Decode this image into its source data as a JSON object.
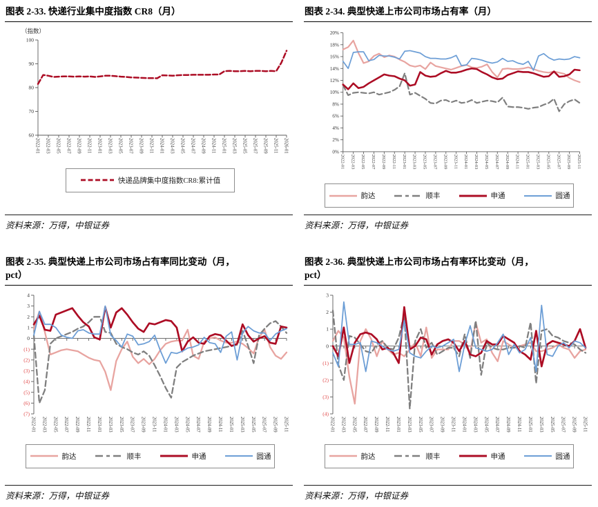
{
  "colors": {
    "cr8": "#AC0C24",
    "yunda": "#E8A4A0",
    "shunfeng": "#7F7F7F",
    "shentong": "#AC0C24",
    "yuantong": "#6C9ED6",
    "negative_tick": "#E04848",
    "axis": "#595959"
  },
  "panels": [
    {
      "title_lines": [
        "图表 2-33. 快递行业集中度指数 CR8（月）"
      ],
      "unit_label": "（指数）",
      "source": "资料来源：万得，中银证券"
    },
    {
      "title_lines": [
        "图表 2-34. 典型快递上市公司市场占有率（月）"
      ],
      "source": "资料来源：万得，中银证券"
    },
    {
      "title_lines": [
        "图表 2-35. 典型快递上市公司市场占有率同比变动（月，",
        "pct）"
      ],
      "source": "资料来源：万得，中银证券"
    },
    {
      "title_lines": [
        "图表 2-36. 典型快递上市公司市场占有率环比变动（月，",
        "pct）"
      ],
      "source": "资料来源：万得，中银证券"
    }
  ],
  "chart_data": [
    {
      "type": "line",
      "title": "快递行业集中度指数 CR8（月）",
      "ylabel": "（指数）",
      "ylim": [
        60,
        100
      ],
      "yticks": [
        {
          "v": 100,
          "label": "100"
        },
        {
          "v": 90,
          "label": "90"
        },
        {
          "v": 80,
          "label": "80"
        },
        {
          "v": 70,
          "label": "70"
        },
        {
          "v": 60,
          "label": "60"
        }
      ],
      "x_tick_labels": [
        "2022-01",
        "2022-03",
        "2022-05",
        "2022-07",
        "2022-09",
        "2022-11",
        "2023-01",
        "2023-03",
        "2023-05",
        "2023-07",
        "2023-09",
        "2023-11",
        "2024-01",
        "2024-03",
        "2024-05",
        "2024-07",
        "2024-09",
        "2024-11",
        "2025-01",
        "2025-03",
        "2025-05",
        "2025-07",
        "2025-09",
        "2025-11",
        "2026-01"
      ],
      "series": [
        {
          "name": "快递品牌集中度指数CR8:累计值",
          "key": "cr8",
          "values": [
            81.5,
            85.3,
            85.0,
            84.5,
            84.6,
            84.7,
            84.7,
            84.6,
            84.7,
            84.6,
            84.7,
            84.5,
            84.7,
            85.0,
            85.0,
            84.8,
            84.6,
            84.5,
            84.3,
            84.2,
            84.1,
            84.0,
            84.0,
            83.9,
            85.2,
            85.1,
            85.0,
            85.2,
            85.3,
            85.3,
            85.4,
            85.4,
            85.4,
            85.4,
            85.5,
            85.5,
            86.9,
            87.0,
            86.9,
            86.9,
            87.0,
            86.9,
            87.0,
            87.0,
            86.9,
            87.0,
            86.9,
            90.5,
            95.5
          ]
        }
      ]
    },
    {
      "type": "line",
      "title": "典型快递上市公司市场占有率（月）",
      "ylim": [
        0,
        20
      ],
      "ytick_suffix": "%",
      "yticks": [
        {
          "v": 20,
          "label": "20%"
        },
        {
          "v": 18,
          "label": "18%"
        },
        {
          "v": 16,
          "label": "16%"
        },
        {
          "v": 14,
          "label": "14%"
        },
        {
          "v": 12,
          "label": "12%"
        },
        {
          "v": 10,
          "label": "10%"
        },
        {
          "v": 8,
          "label": "8%"
        },
        {
          "v": 6,
          "label": "6%"
        },
        {
          "v": 4,
          "label": "4%"
        },
        {
          "v": 2,
          "label": "2%"
        },
        {
          "v": 0,
          "label": "0%"
        }
      ],
      "x_tick_labels": [
        "2022-01",
        "2022-03",
        "2022-05",
        "2022-07",
        "2022-09",
        "2022-11",
        "2023-01",
        "2023-03",
        "2023-05",
        "2023-07",
        "2023-09",
        "2023-11",
        "2024-01",
        "2024-03",
        "2024-05",
        "2024-07",
        "2024-09",
        "2024-11",
        "2025-01",
        "2025-03",
        "2025-05",
        "2025-07",
        "2025-09",
        "2025-11"
      ],
      "series": [
        {
          "name": "韵达",
          "key": "yunda",
          "values": [
            17.2,
            17.6,
            18.7,
            16.6,
            14.9,
            15.2,
            16.1,
            16.5,
            15.9,
            16.2,
            16.0,
            15.5,
            15.1,
            14.5,
            14.3,
            14.5,
            13.9,
            15.0,
            14.4,
            14.2,
            14.0,
            13.8,
            14.1,
            14.4,
            14.6,
            14.2,
            14.1,
            14.3,
            14.7,
            13.4,
            12.5,
            13.9,
            14.0,
            13.9,
            13.9,
            14.0,
            14.2,
            13.9,
            13.6,
            13.4,
            13.3,
            13.5,
            13.3,
            13.1,
            12.4,
            12.0,
            11.7
          ]
        },
        {
          "name": "顺丰",
          "key": "shunfeng",
          "values": [
            11.2,
            9.5,
            9.9,
            10.0,
            9.9,
            9.8,
            10.0,
            9.6,
            9.8,
            10.0,
            10.4,
            11.0,
            13.2,
            9.6,
            9.9,
            9.4,
            8.9,
            8.2,
            8.1,
            8.6,
            8.7,
            8.3,
            8.6,
            8.2,
            8.3,
            8.7,
            8.2,
            8.4,
            8.6,
            8.5,
            8.3,
            9.1,
            7.6,
            7.5,
            7.5,
            7.4,
            7.2,
            7.4,
            7.5,
            7.9,
            8.2,
            8.9,
            6.8,
            8.0,
            8.5,
            8.8,
            8.2
          ]
        },
        {
          "name": "申通",
          "key": "shentong",
          "values": [
            11.3,
            10.5,
            11.5,
            10.7,
            10.9,
            11.5,
            12.0,
            12.5,
            13.0,
            12.8,
            12.7,
            12.3,
            12.0,
            11.1,
            11.3,
            13.4,
            12.8,
            12.6,
            12.7,
            13.2,
            13.6,
            13.3,
            13.3,
            13.5,
            13.8,
            14.0,
            13.9,
            13.4,
            13.0,
            12.5,
            12.2,
            12.3,
            12.9,
            13.2,
            13.5,
            13.4,
            13.4,
            13.2,
            12.9,
            12.6,
            12.7,
            13.5,
            12.6,
            12.7,
            13.0,
            13.8,
            13.7
          ]
        },
        {
          "name": "圆通",
          "key": "yuantong",
          "values": [
            15.2,
            14.0,
            16.7,
            16.8,
            16.8,
            15.3,
            15.5,
            16.2,
            16.1,
            16.1,
            15.9,
            15.6,
            16.9,
            17.0,
            16.8,
            16.6,
            16.0,
            15.7,
            15.7,
            15.6,
            15.6,
            15.8,
            16.2,
            14.5,
            14.6,
            15.7,
            15.6,
            15.4,
            15.1,
            14.9,
            15.1,
            15.7,
            15.2,
            15.3,
            14.9,
            14.7,
            15.2,
            13.7,
            16.1,
            16.5,
            15.8,
            15.4,
            15.6,
            15.5,
            15.6,
            16.0,
            15.8
          ]
        }
      ]
    },
    {
      "type": "line",
      "title": "典型快递上市公司市场占有率同比变动（月，pct）",
      "ylim": [
        -7,
        4
      ],
      "yticks": [
        {
          "v": 4,
          "label": "4"
        },
        {
          "v": 3,
          "label": "3"
        },
        {
          "v": 2,
          "label": "2"
        },
        {
          "v": 1,
          "label": "1"
        },
        {
          "v": 0,
          "label": "0"
        },
        {
          "v": -1,
          "label": "(1)"
        },
        {
          "v": -2,
          "label": "(2)"
        },
        {
          "v": -3,
          "label": "(3)"
        },
        {
          "v": -4,
          "label": "(4)"
        },
        {
          "v": -5,
          "label": "(5)"
        },
        {
          "v": -6,
          "label": "(6)"
        },
        {
          "v": -7,
          "label": "(7)"
        }
      ],
      "x_tick_labels": [
        "2022-01",
        "2022-03",
        "2022-05",
        "2022-07",
        "2022-09",
        "2022-11",
        "2023-01",
        "2023-03",
        "2023-05",
        "2023-07",
        "2023-09",
        "2023-11",
        "2024-01",
        "2024-03",
        "2024-05",
        "2024-07",
        "2024-09",
        "2024-11",
        "2025-01",
        "2025-03",
        "2025-05",
        "2025-07",
        "2025-09",
        "2025-11"
      ],
      "series": [
        {
          "name": "韵达",
          "key": "yunda",
          "values": [
            0.9,
            2.5,
            0.6,
            -1.5,
            -1.3,
            -1.1,
            -1.0,
            -1.1,
            -1.2,
            -1.5,
            -1.8,
            -2.0,
            -2.1,
            -3.1,
            -4.8,
            -2.1,
            -1.0,
            -0.3,
            -1.7,
            -2.3,
            -1.9,
            -2.4,
            -1.9,
            -1.1,
            -0.5,
            -0.3,
            -0.2,
            -0.2,
            0.8,
            -1.6,
            -1.9,
            -0.3,
            0.0,
            0.1,
            -0.2,
            -0.4,
            -0.4,
            -0.3,
            -0.5,
            -0.9,
            -1.4,
            0.1,
            0.8,
            -0.8,
            -1.6,
            -1.9,
            -1.3
          ]
        },
        {
          "name": "顺丰",
          "key": "shunfeng",
          "values": [
            0.3,
            -6.0,
            -4.8,
            -0.5,
            0.0,
            0.2,
            0.4,
            0.6,
            0.9,
            1.1,
            1.5,
            2.0,
            2.0,
            0.6,
            0.5,
            -0.5,
            -0.8,
            -1.0,
            -1.3,
            -1.5,
            -1.2,
            -1.6,
            -2.5,
            -3.5,
            -4.6,
            -5.5,
            -2.7,
            -2.2,
            -1.9,
            -1.6,
            -1.4,
            -1.2,
            -1.1,
            -1.0,
            -0.9,
            -0.8,
            -0.7,
            -0.6,
            0.7,
            -0.7,
            -2.3,
            0.3,
            0.9,
            1.4,
            1.6,
            1.1,
            0.5
          ]
        },
        {
          "name": "申通",
          "key": "shentong",
          "values": [
            1.3,
            2.1,
            0.8,
            0.7,
            2.2,
            2.4,
            2.6,
            2.8,
            2.1,
            1.5,
            1.1,
            0.1,
            -0.1,
            2.9,
            1.0,
            2.4,
            2.8,
            2.2,
            1.5,
            0.9,
            0.6,
            1.4,
            1.3,
            1.5,
            1.7,
            1.6,
            1.0,
            -1.2,
            -0.3,
            0.1,
            -0.4,
            -0.5,
            0.2,
            0.4,
            0.3,
            -0.2,
            -0.7,
            -0.5,
            1.3,
            0.3,
            -0.3,
            0.0,
            0.2,
            -0.4,
            -0.5,
            1.1,
            1.0
          ]
        },
        {
          "name": "圆通",
          "key": "yuantong",
          "values": [
            0.3,
            2.5,
            1.3,
            1.3,
            1.0,
            0.3,
            0.1,
            0.0,
            0.7,
            0.8,
            0.5,
            0.4,
            0.4,
            3.0,
            0.3,
            -0.2,
            -0.8,
            0.4,
            0.2,
            -0.6,
            -0.5,
            -0.3,
            0.3,
            -1.1,
            -2.3,
            -1.3,
            -1.4,
            -1.2,
            -0.9,
            -0.8,
            -0.6,
            0.1,
            -0.4,
            -0.5,
            -1.3,
            0.2,
            0.6,
            -2.0,
            0.5,
            1.1,
            0.7,
            0.5,
            0.5,
            -0.2,
            0.4,
            0.7,
            0.9
          ]
        }
      ]
    },
    {
      "type": "line",
      "title": "典型快递上市公司市场占有率环比变动（月，pct）",
      "ylim": [
        -4,
        3
      ],
      "yticks": [
        {
          "v": 3,
          "label": "3"
        },
        {
          "v": 2,
          "label": "2"
        },
        {
          "v": 1,
          "label": "1"
        },
        {
          "v": 0,
          "label": "0"
        },
        {
          "v": -1,
          "label": "(1)"
        },
        {
          "v": -2,
          "label": "(2)"
        },
        {
          "v": -3,
          "label": "(3)"
        },
        {
          "v": -4,
          "label": "(4)"
        }
      ],
      "x_tick_labels": [
        "2022-01",
        "2022-03",
        "2022-05",
        "2022-07",
        "2022-09",
        "2022-11",
        "2023-01",
        "2023-03",
        "2023-05",
        "2023-07",
        "2023-09",
        "2023-11",
        "2024-01",
        "2024-03",
        "2024-05",
        "2024-07",
        "2024-09",
        "2024-11",
        "2025-01",
        "2025-03",
        "2025-05",
        "2025-07",
        "2025-09",
        "2025-11"
      ],
      "series": [
        {
          "name": "韵达",
          "key": "yunda",
          "values": [
            0.3,
            0.9,
            0.5,
            -1.8,
            -3.4,
            0.3,
            1.0,
            0.4,
            -0.6,
            0.3,
            -0.2,
            -0.5,
            -0.4,
            -0.6,
            -0.2,
            0.2,
            -0.6,
            1.1,
            -0.7,
            -0.2,
            -0.2,
            -0.2,
            0.3,
            0.3,
            0.1,
            -0.4,
            1.4,
            0.2,
            0.4,
            -0.4,
            -0.9,
            0.3,
            0.1,
            -0.1,
            0.0,
            0.1,
            0.2,
            -0.3,
            -0.3,
            -0.2,
            -0.1,
            0.1,
            -0.1,
            -0.2,
            -0.7,
            -0.3,
            -0.2
          ]
        },
        {
          "name": "顺丰",
          "key": "shunfeng",
          "values": [
            2.1,
            -1.1,
            -2.0,
            0.6,
            0.5,
            0.1,
            -0.3,
            -0.4,
            0.1,
            0.3,
            -0.1,
            -0.2,
            0.5,
            1.9,
            -3.7,
            0.3,
            1.0,
            -0.1,
            0.2,
            -0.5,
            -0.3,
            -0.1,
            -0.1,
            -0.6,
            0.7,
            -0.7,
            1.5,
            -1.7,
            0.2,
            -0.1,
            -0.2,
            -0.2,
            -0.1,
            -0.1,
            0.0,
            -0.1,
            1.4,
            -2.2,
            0.9,
            1.0,
            0.6,
            0.5,
            0.3,
            0.2,
            0.1,
            -0.2,
            -0.4
          ]
        },
        {
          "name": "申通",
          "key": "shentong",
          "values": [
            0.0,
            -0.6,
            1.1,
            -1.0,
            0.2,
            0.7,
            0.8,
            0.7,
            0.4,
            -0.2,
            -0.1,
            -0.4,
            -1.0,
            2.3,
            -0.2,
            0.0,
            0.5,
            0.4,
            -0.5,
            0.1,
            0.3,
            0.4,
            0.2,
            -0.3,
            0.3,
            -0.5,
            -0.6,
            -0.4,
            0.3,
            0.1,
            0.1,
            0.6,
            0.4,
            0.2,
            -0.3,
            -0.5,
            -0.8,
            0.9,
            -1.2,
            0.1,
            0.3,
            0.2,
            0.1,
            0.0,
            0.3,
            1.0,
            -0.1
          ]
        },
        {
          "name": "圆通",
          "key": "yuantong",
          "values": [
            -0.4,
            -1.2,
            2.6,
            0.1,
            0.1,
            0.2,
            -1.5,
            0.3,
            0.2,
            0.0,
            -0.2,
            -0.3,
            -0.2,
            1.5,
            -0.4,
            -0.6,
            -0.7,
            -0.3,
            0.0,
            -0.1,
            0.0,
            0.2,
            0.4,
            -1.5,
            0.1,
            1.2,
            -0.1,
            -0.2,
            -0.3,
            -0.2,
            0.2,
            0.7,
            -0.5,
            0.1,
            -0.4,
            -0.2,
            0.5,
            -1.5,
            2.4,
            -0.5,
            -0.6,
            0.0,
            0.2,
            -0.1,
            0.3,
            0.2,
            -0.1
          ]
        }
      ]
    }
  ]
}
